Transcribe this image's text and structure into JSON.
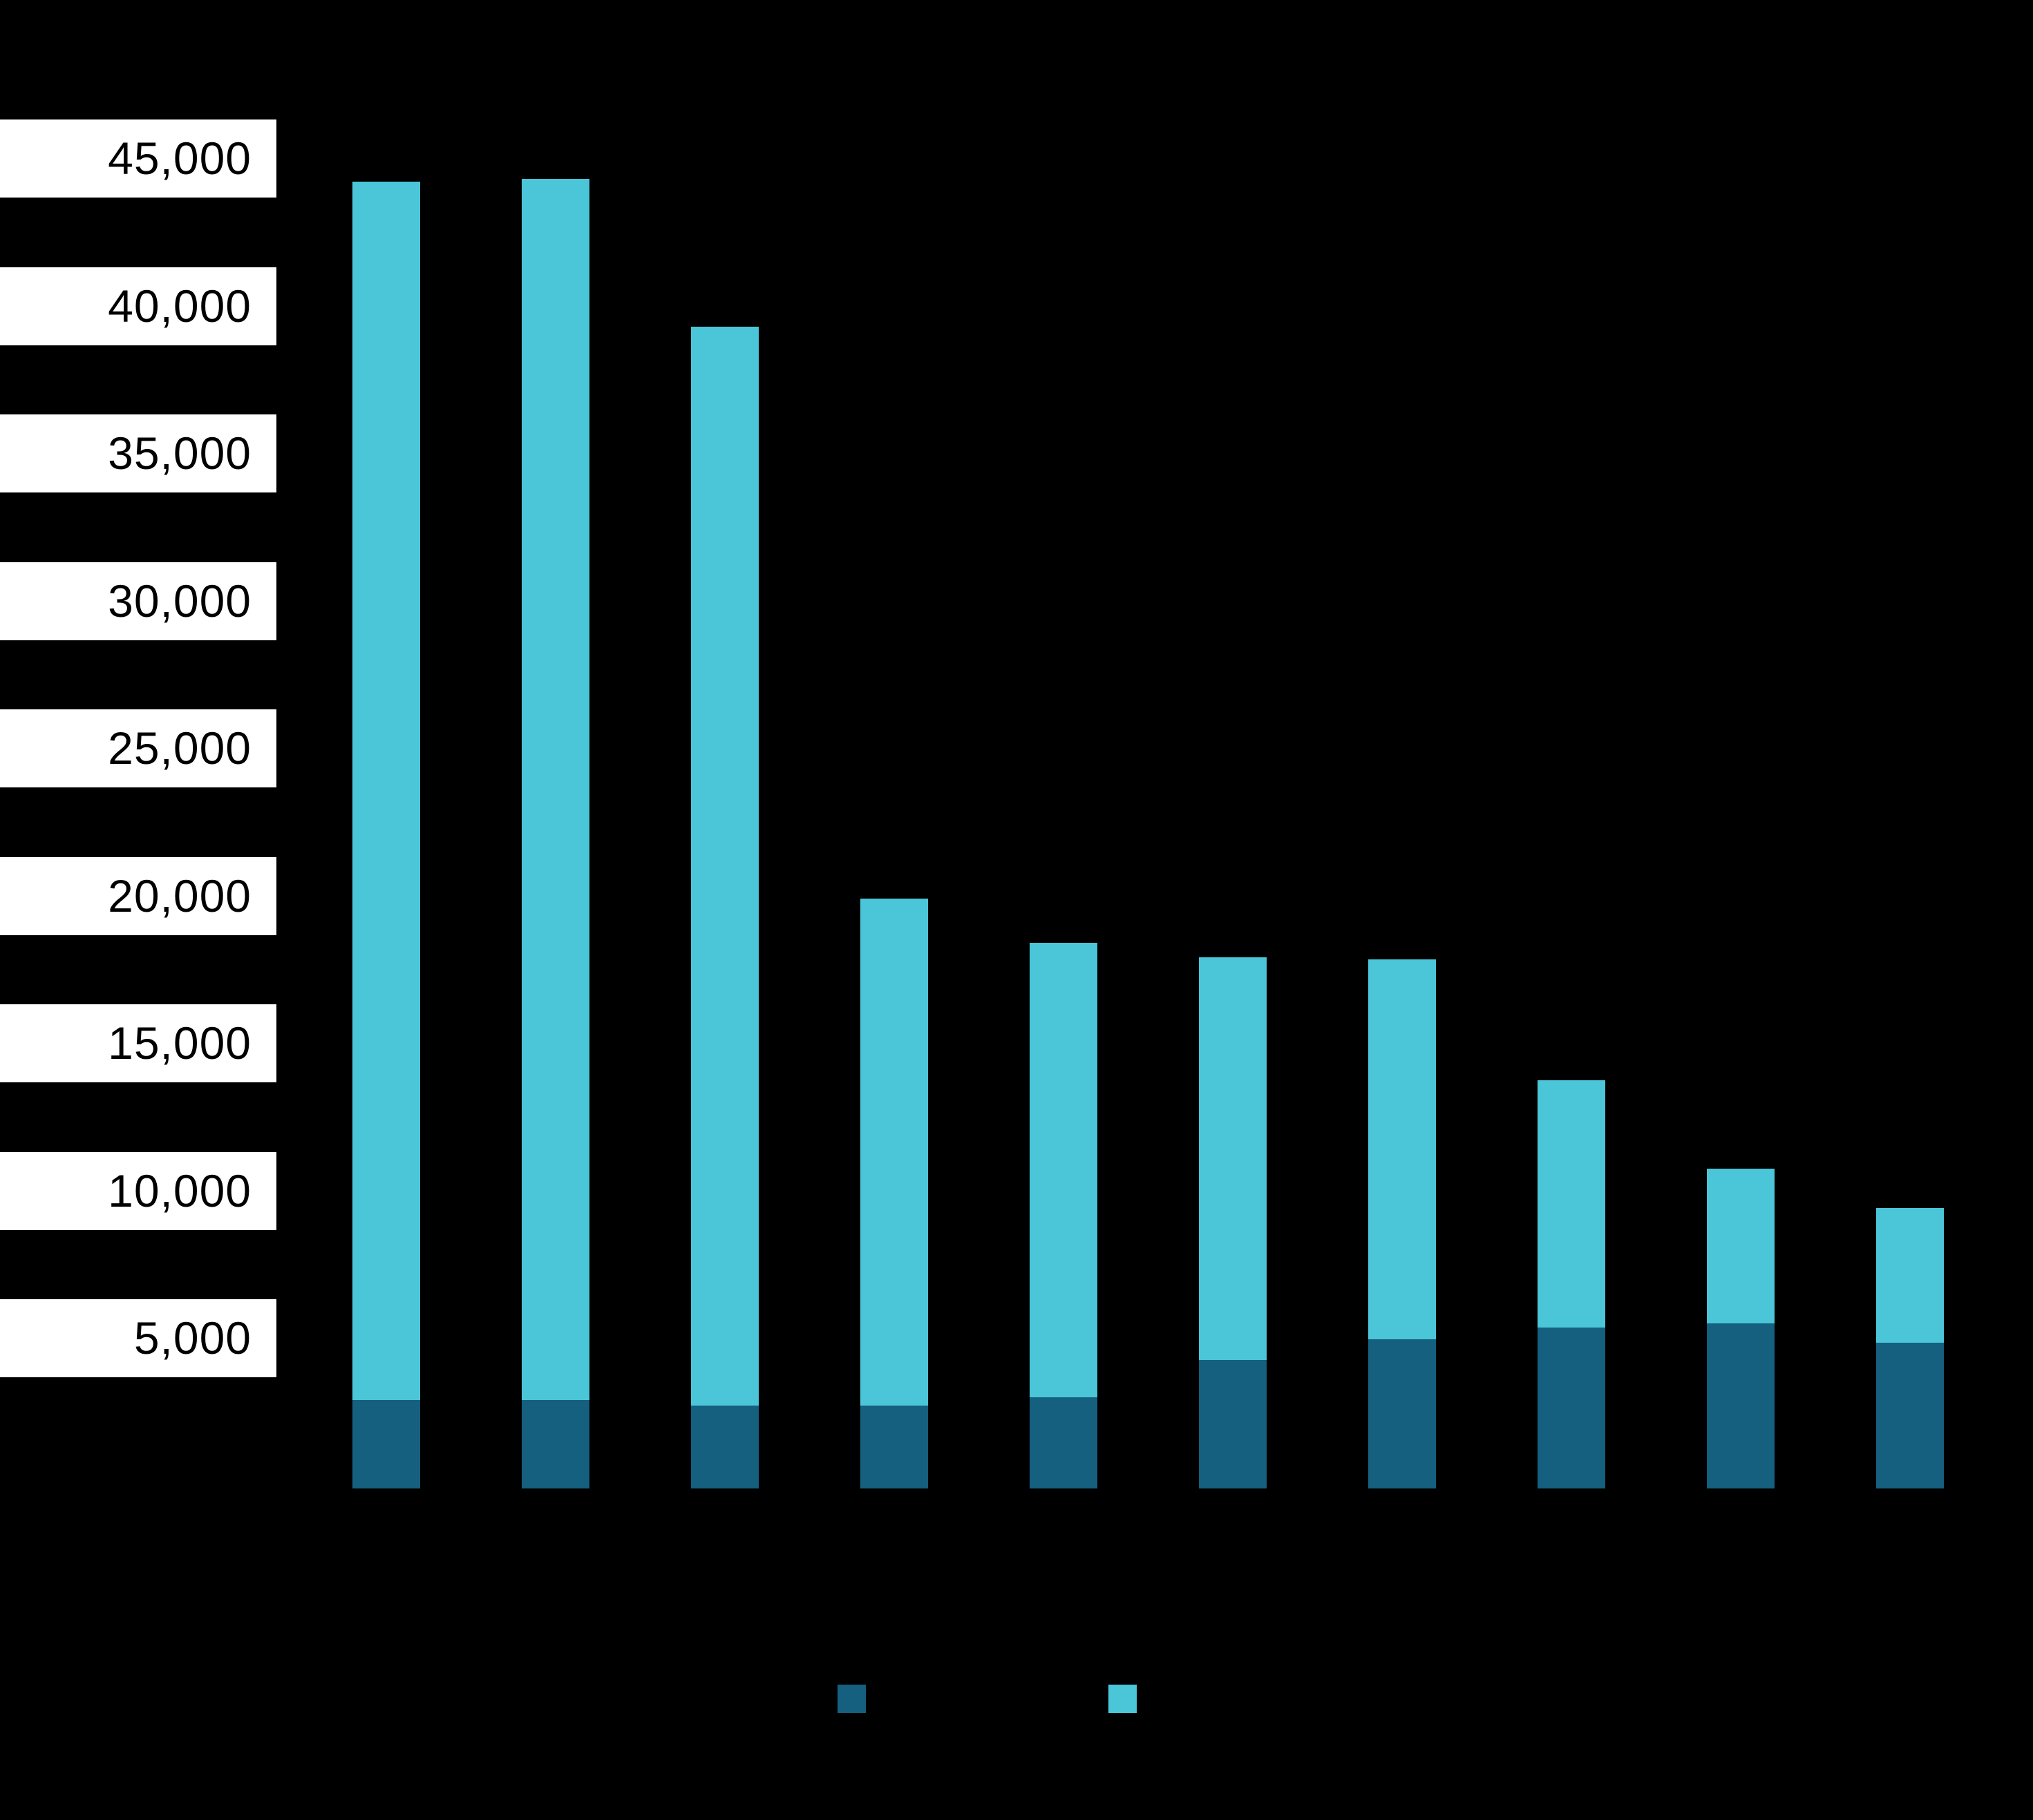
{
  "chart_data": {
    "type": "bar",
    "stacked": true,
    "orientation": "vertical",
    "title": "",
    "xlabel": "",
    "ylabel": "",
    "categories": [
      "",
      "",
      "",
      "",
      "",
      "",
      "",
      "",
      "",
      ""
    ],
    "series": [
      {
        "name": "",
        "color": "#155F7F",
        "values": [
          3000,
          3000,
          2800,
          2800,
          3100,
          4350,
          5050,
          5450,
          5600,
          4950
        ]
      },
      {
        "name": "",
        "color": "#4BC6D8",
        "values": [
          41300,
          41400,
          36600,
          17200,
          15400,
          13650,
          12900,
          8400,
          5250,
          4550
        ]
      }
    ],
    "totals": [
      44300,
      44400,
      39400,
      20000,
      18500,
      18000,
      17950,
      13850,
      10850,
      9500
    ],
    "y_ticks": [
      "45,000",
      "40,000",
      "35,000",
      "30,000",
      "25,000",
      "20,000",
      "15,000",
      "10,000",
      "5,000"
    ],
    "y_tick_values": [
      45000,
      40000,
      35000,
      30000,
      25000,
      20000,
      15000,
      10000,
      5000
    ],
    "ylim": [
      0,
      47000
    ],
    "grid": false,
    "legend_position": "bottom-center",
    "x_tick_labels_visible": false,
    "legend_labels_visible": false
  },
  "appearance": {
    "background_color": "#000000",
    "tick_label_box_color": "#FFFFFF",
    "tick_label_text_color": "#000000",
    "series1_color": "#155F7F",
    "series2_color": "#4BC6D8"
  }
}
